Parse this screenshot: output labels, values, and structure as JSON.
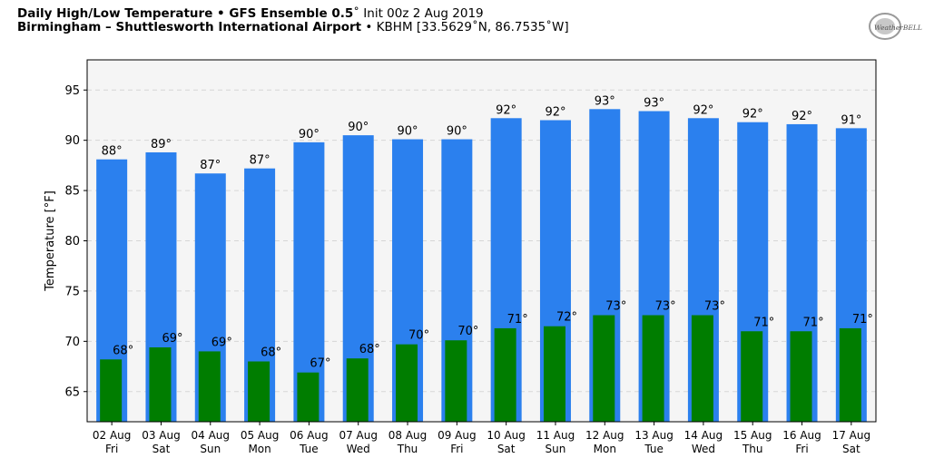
{
  "header": {
    "line1_bold": "Daily High/Low Temperature • GFS Ensemble 0.5",
    "line1_deg": "˚",
    "line1_rest": " Init 00z 2 Aug 2019",
    "line2_bold": "Birmingham – Shuttlesworth International Airport",
    "line2_rest": " • KBHM [33.5629˚N, 86.7535˚W]"
  },
  "logo": {
    "text": "WeatherBELL",
    "icon": "weatherbell-logo"
  },
  "colors": {
    "high": "#2b80ee",
    "low": "#007d00",
    "plot_bg": "#f5f5f5",
    "grid": "#d6d6d6"
  },
  "chart_data": {
    "type": "bar",
    "ylabel": "Temperature [°F]",
    "ylim": [
      62,
      98
    ],
    "yticks": [
      65,
      70,
      75,
      80,
      85,
      90,
      95
    ],
    "grid": "horizontal dashed",
    "categories": [
      [
        "02 Aug",
        "Fri"
      ],
      [
        "03 Aug",
        "Sat"
      ],
      [
        "04 Aug",
        "Sun"
      ],
      [
        "05 Aug",
        "Mon"
      ],
      [
        "06 Aug",
        "Tue"
      ],
      [
        "07 Aug",
        "Wed"
      ],
      [
        "08 Aug",
        "Thu"
      ],
      [
        "09 Aug",
        "Fri"
      ],
      [
        "10 Aug",
        "Sat"
      ],
      [
        "11 Aug",
        "Sun"
      ],
      [
        "12 Aug",
        "Mon"
      ],
      [
        "13 Aug",
        "Tue"
      ],
      [
        "14 Aug",
        "Wed"
      ],
      [
        "15 Aug",
        "Thu"
      ],
      [
        "16 Aug",
        "Fri"
      ],
      [
        "17 Aug",
        "Sat"
      ]
    ],
    "series": [
      {
        "name": "High",
        "color": "#2b80ee",
        "values": [
          88.1,
          88.8,
          86.7,
          87.2,
          89.8,
          90.5,
          90.1,
          90.1,
          92.2,
          92.0,
          93.1,
          92.9,
          92.2,
          91.8,
          91.6,
          91.2
        ],
        "labels": [
          "88°",
          "89°",
          "87°",
          "87°",
          "90°",
          "90°",
          "90°",
          "90°",
          "92°",
          "92°",
          "93°",
          "93°",
          "92°",
          "92°",
          "92°",
          "91°"
        ]
      },
      {
        "name": "Low",
        "color": "#007d00",
        "values": [
          68.2,
          69.4,
          69.0,
          68.0,
          66.9,
          68.3,
          69.7,
          70.1,
          71.3,
          71.5,
          72.6,
          72.6,
          72.6,
          71.0,
          71.0,
          71.3
        ],
        "labels": [
          "68°",
          "69°",
          "69°",
          "68°",
          "67°",
          "68°",
          "70°",
          "70°",
          "71°",
          "72°",
          "73°",
          "73°",
          "73°",
          "71°",
          "71°",
          "71°"
        ]
      }
    ]
  }
}
